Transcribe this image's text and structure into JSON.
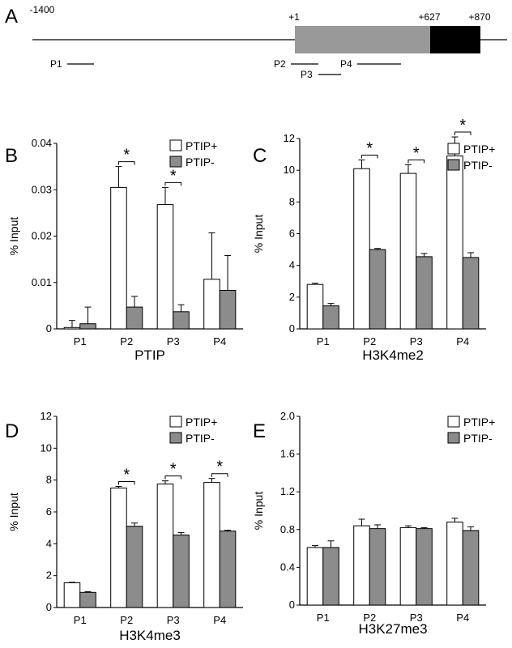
{
  "colors": {
    "ptip_plus_fill": "#ffffff",
    "ptip_minus_fill": "#8c8c8c",
    "region_gray": "#999999",
    "region_black": "#000000",
    "stroke": "#000000"
  },
  "panel_a": {
    "letter": "A",
    "ticks": [
      "-1400",
      "+1",
      "+627",
      "+870"
    ],
    "probes": [
      "P1",
      "P2",
      "P3",
      "P4"
    ]
  },
  "chart_data": [
    {
      "type": "bar",
      "panel_letter": "B",
      "title": "PTIP",
      "ylabel": "% Input",
      "categories": [
        "P1",
        "P2",
        "P3",
        "P4"
      ],
      "ylim": [
        0,
        0.04
      ],
      "yticks": [
        0,
        0.01,
        0.02,
        0.03,
        0.04
      ],
      "ytick_labels": [
        "0",
        "0.01",
        "0.02",
        "0.03",
        "0.04"
      ],
      "legend": "top-right",
      "series": [
        {
          "name": "PTIP+",
          "values": [
            0.0003,
            0.0305,
            0.0268,
            0.0107
          ],
          "errors": [
            0.0015,
            0.0045,
            0.0037,
            0.01
          ]
        },
        {
          "name": "PTIP-",
          "values": [
            0.0011,
            0.0047,
            0.0037,
            0.0083
          ],
          "errors": [
            0.0036,
            0.0023,
            0.0015,
            0.0075
          ]
        }
      ],
      "significance": [
        {
          "category": "P2",
          "label": "*"
        },
        {
          "category": "P3",
          "label": "*"
        }
      ]
    },
    {
      "type": "bar",
      "panel_letter": "C",
      "title": "H3K4me2",
      "ylabel": "% Input",
      "categories": [
        "P1",
        "P2",
        "P3",
        "P4"
      ],
      "ylim": [
        0,
        12
      ],
      "yticks": [
        0,
        2,
        4,
        6,
        8,
        10,
        12
      ],
      "ytick_labels": [
        "0",
        "2",
        "4",
        "6",
        "8",
        "10",
        "12"
      ],
      "legend": "top-right",
      "series": [
        {
          "name": "PTIP+",
          "values": [
            2.8,
            10.1,
            9.8,
            10.9
          ],
          "errors": [
            0.08,
            0.55,
            0.55,
            1.2
          ]
        },
        {
          "name": "PTIP-",
          "values": [
            1.45,
            5.0,
            4.55,
            4.5
          ],
          "errors": [
            0.15,
            0.07,
            0.2,
            0.3
          ]
        }
      ],
      "significance": [
        {
          "category": "P2",
          "label": "*"
        },
        {
          "category": "P3",
          "label": "*"
        },
        {
          "category": "P4",
          "label": "*"
        }
      ]
    },
    {
      "type": "bar",
      "panel_letter": "D",
      "title": "H3K4me3",
      "ylabel": "% Input",
      "categories": [
        "P1",
        "P2",
        "P3",
        "P4"
      ],
      "ylim": [
        0,
        12
      ],
      "yticks": [
        0,
        2,
        4,
        6,
        8,
        10,
        12
      ],
      "ytick_labels": [
        "0",
        "2",
        "4",
        "6",
        "8",
        "10",
        "12"
      ],
      "legend": "top-right",
      "series": [
        {
          "name": "PTIP+",
          "values": [
            1.55,
            7.5,
            7.75,
            7.85
          ],
          "errors": [
            0.03,
            0.1,
            0.2,
            0.25
          ]
        },
        {
          "name": "PTIP-",
          "values": [
            0.95,
            5.1,
            4.55,
            4.8
          ],
          "errors": [
            0.05,
            0.2,
            0.15,
            0.05
          ]
        }
      ],
      "significance": [
        {
          "category": "P2",
          "label": "*"
        },
        {
          "category": "P3",
          "label": "*"
        },
        {
          "category": "P4",
          "label": "*"
        }
      ]
    },
    {
      "type": "bar",
      "panel_letter": "E",
      "title": "H3K27me3",
      "ylabel": "% Input",
      "categories": [
        "P1",
        "P2",
        "P3",
        "P4"
      ],
      "ylim": [
        0,
        2.0
      ],
      "yticks": [
        0,
        0.4,
        0.8,
        1.2,
        1.6,
        2.0
      ],
      "ytick_labels": [
        "0",
        "0.4",
        "0.8",
        "1.2",
        "1.6",
        "2.0"
      ],
      "legend": "top-right",
      "series": [
        {
          "name": "PTIP+",
          "values": [
            0.61,
            0.84,
            0.82,
            0.88
          ],
          "errors": [
            0.02,
            0.07,
            0.02,
            0.04
          ]
        },
        {
          "name": "PTIP-",
          "values": [
            0.61,
            0.81,
            0.81,
            0.79
          ],
          "errors": [
            0.07,
            0.04,
            0.01,
            0.04
          ]
        }
      ],
      "significance": []
    }
  ]
}
